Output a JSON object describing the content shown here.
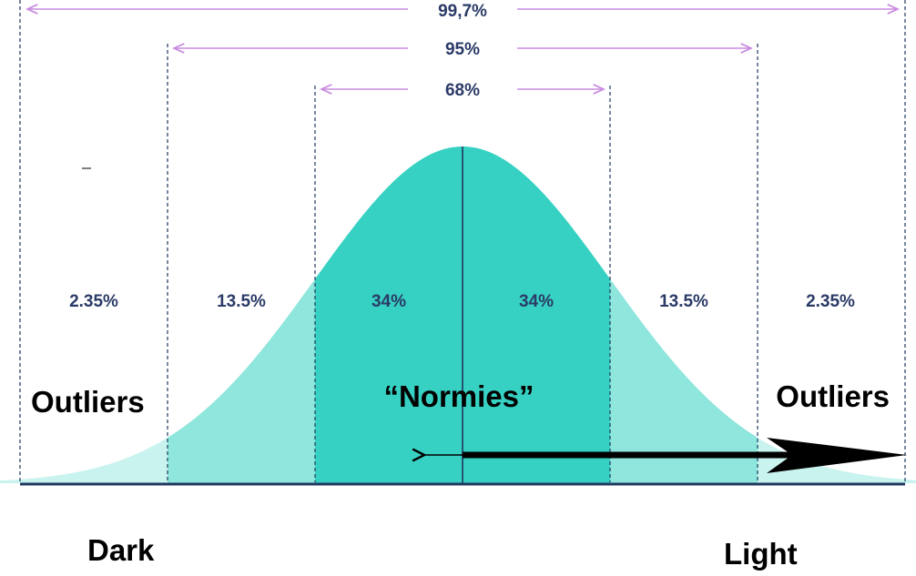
{
  "colors": {
    "center": "#36d1c2",
    "mid": "#8ee6dc",
    "tail": "#c9f3ee",
    "axis": "#1f3860",
    "span_arrow": "#c98be0",
    "label": "#2b3a67",
    "black": "#000000"
  },
  "spans": {
    "outer": "99,7%",
    "middle": "95%",
    "inner": "68%"
  },
  "segments": [
    "2.35%",
    "13.5%",
    "34%",
    "34%",
    "13.5%",
    "2.35%"
  ],
  "labels": {
    "outliers_left": "Outliers",
    "normies": "“Normies”",
    "outliers_right": "Outliers",
    "dark": "Dark",
    "light": "Light"
  }
}
